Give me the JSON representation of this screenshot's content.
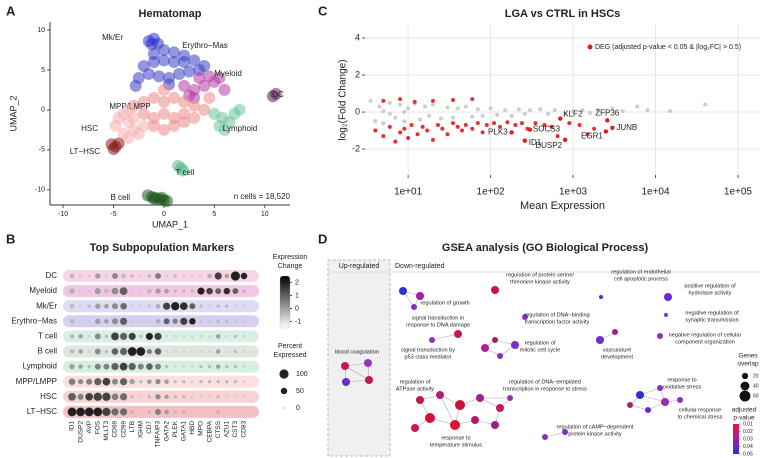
{
  "panels": [
    "A",
    "B",
    "C",
    "D"
  ],
  "chart_data": [
    {
      "type": "scatter",
      "title": "Hematomap",
      "xlabel": "UMAP_1",
      "ylabel": "UMAP_2",
      "annotation": "n cells = 18,520",
      "xlim": [
        -11.3,
        12.5
      ],
      "ylim": [
        -11.9,
        11
      ],
      "xticks": [
        -10,
        -5,
        0,
        5,
        10
      ],
      "yticks": [
        -10,
        -5,
        0,
        5,
        10
      ],
      "grid": false,
      "series": [
        {
          "name": "Mk/Er",
          "color": "#2f2fd0",
          "x": [
            -1.5,
            -1,
            -0.6,
            -1.2
          ],
          "y": [
            8.6,
            8.9,
            8.3,
            8.2
          ]
        },
        {
          "name": "Erythro−Mas",
          "color": "#3a3fc4",
          "x": [
            -2.5,
            -1.5,
            -0.5,
            0.5,
            1.5,
            2.5,
            3.5,
            -2,
            -1,
            0,
            1,
            2,
            3,
            4,
            -1,
            0,
            1,
            2,
            0.5,
            -2.8
          ],
          "y": [
            4,
            4.5,
            4.2,
            4,
            4.5,
            4.8,
            5,
            5.5,
            6,
            6.2,
            6,
            6,
            6.2,
            5.5,
            7,
            7.5,
            7.2,
            6.8,
            3.2,
            3
          ]
        },
        {
          "name": "Myeloid",
          "color": "#b43aa6",
          "x": [
            2,
            3,
            4,
            5,
            3.5,
            4.5,
            5.5,
            2.5,
            6,
            3
          ],
          "y": [
            3,
            2.5,
            3,
            3.5,
            4,
            4.2,
            4,
            1.8,
            2.5,
            1.5
          ]
        },
        {
          "name": "DC",
          "color": "#5c1e5c",
          "x": [
            10.8,
            11.1
          ],
          "y": [
            1.7,
            2
          ]
        },
        {
          "name": "MPP/LMPP",
          "color": "#ef8a8a",
          "x": [
            -3,
            -2,
            -1,
            0,
            1,
            2,
            3,
            4,
            -2,
            -1,
            0,
            1,
            2,
            3,
            -1,
            0,
            1,
            2,
            0,
            4.5
          ],
          "y": [
            0.5,
            1,
            1.5,
            1,
            1.5,
            1,
            0.5,
            0,
            -0.5,
            -1,
            -0.5,
            -1,
            -0.5,
            -1,
            -2,
            -2.5,
            -2,
            -1.5,
            2.5,
            1.5
          ]
        },
        {
          "name": "HSC",
          "color": "#f4b0b0",
          "x": [
            -4.5,
            -4,
            -3.5,
            -3,
            -4,
            -3.5,
            -2.5,
            -3,
            -4.8,
            -3.5,
            -2
          ],
          "y": [
            -1,
            -0.5,
            -1.5,
            -2.5,
            -3,
            -3.5,
            -3,
            -1,
            -2,
            0,
            -2
          ]
        },
        {
          "name": "LT−HSC",
          "color": "#8c1c1c",
          "x": [
            -5.2,
            -4.8,
            -5,
            -4.5
          ],
          "y": [
            -4.3,
            -4.6,
            -4.9,
            -4.2
          ]
        },
        {
          "name": "Lymphoid",
          "color": "#6cc5a0",
          "x": [
            5,
            5.8,
            6.5,
            7,
            7.5,
            6,
            5.5
          ],
          "y": [
            -0.5,
            -1,
            -1.5,
            -0.5,
            0,
            -2.5,
            -2
          ]
        },
        {
          "name": "T cell",
          "color": "#59b890",
          "x": [
            1.4,
            1.7,
            1.9
          ],
          "y": [
            -7,
            -7.3,
            -7.6
          ]
        },
        {
          "name": "B cell",
          "color": "#1e5a1e",
          "x": [
            -1.6,
            -1.2,
            -0.8,
            -0.4,
            0,
            0.3,
            -1,
            -0.2
          ],
          "y": [
            -10.7,
            -10.9,
            -11,
            -11.2,
            -11.3,
            -11.4,
            -11.1,
            -11
          ]
        }
      ]
    },
    {
      "type": "dotplot",
      "title": "Top Subpopulation Markers",
      "rows": [
        "DC",
        "Myeloid",
        "Mk/Er",
        "Erythro−Mas",
        "T cell",
        "B cell",
        "Lymphoid",
        "MPP/LMPP",
        "HSC",
        "LT−HSC"
      ],
      "row_colors": [
        "#f7d6e4",
        "#f3c6e6",
        "#dcdcf7",
        "#d6d0f0",
        "#d8efe3",
        "#dfe6df",
        "#d7efe2",
        "#fbe0e0",
        "#f9d3d3",
        "#f4c0c0"
      ],
      "genes": [
        "ID1",
        "DUSP2",
        "AVP",
        "FOS",
        "MLLT3",
        "CD69",
        "CD99",
        "LTB",
        "IGHM",
        "CD7",
        "TNFAIP3",
        "GATA2",
        "PLEK",
        "GATA1",
        "HBD",
        "MPO",
        "CEBPA",
        "CTSS",
        "AZU1",
        "CST3",
        "CD83"
      ],
      "pct": [
        [
          20,
          10,
          5,
          30,
          10,
          40,
          20,
          10,
          5,
          10,
          40,
          5,
          10,
          5,
          5,
          10,
          20,
          60,
          20,
          100,
          50
        ],
        [
          30,
          10,
          5,
          40,
          20,
          50,
          70,
          10,
          5,
          20,
          30,
          20,
          10,
          10,
          10,
          60,
          50,
          40,
          50,
          40,
          10
        ],
        [
          20,
          5,
          10,
          30,
          20,
          40,
          50,
          5,
          5,
          10,
          20,
          60,
          80,
          70,
          40,
          10,
          5,
          10,
          10,
          5,
          5
        ],
        [
          20,
          5,
          5,
          30,
          20,
          40,
          60,
          5,
          5,
          5,
          20,
          40,
          30,
          60,
          50,
          5,
          5,
          10,
          10,
          10,
          5
        ],
        [
          20,
          20,
          5,
          40,
          10,
          70,
          60,
          60,
          10,
          60,
          60,
          5,
          5,
          5,
          5,
          5,
          5,
          20,
          5,
          10,
          5
        ],
        [
          20,
          20,
          5,
          40,
          10,
          50,
          60,
          90,
          90,
          30,
          50,
          5,
          5,
          5,
          5,
          5,
          5,
          20,
          5,
          10,
          5
        ],
        [
          30,
          20,
          10,
          40,
          40,
          60,
          70,
          60,
          40,
          50,
          40,
          10,
          5,
          5,
          5,
          10,
          10,
          20,
          10,
          10,
          5
        ],
        [
          50,
          30,
          40,
          60,
          70,
          40,
          60,
          30,
          10,
          20,
          30,
          20,
          10,
          10,
          5,
          10,
          10,
          10,
          10,
          10,
          5
        ],
        [
          70,
          40,
          70,
          80,
          80,
          50,
          60,
          10,
          5,
          10,
          30,
          20,
          10,
          10,
          5,
          5,
          5,
          10,
          5,
          5,
          5
        ],
        [
          90,
          90,
          90,
          90,
          80,
          60,
          60,
          10,
          5,
          10,
          40,
          20,
          10,
          10,
          5,
          5,
          5,
          10,
          5,
          5,
          5
        ]
      ],
      "change": [
        [
          -0.5,
          -1,
          -1,
          0,
          -1,
          0.3,
          -0.5,
          -0.5,
          -1,
          -0.5,
          0.5,
          -1,
          -0.5,
          -1,
          -1,
          -1,
          -0.3,
          1.5,
          0,
          2,
          2
        ],
        [
          -0.3,
          -1,
          -1,
          0,
          -0.5,
          0.3,
          1,
          -1,
          -1,
          -0.5,
          0,
          0,
          -0.5,
          -0.5,
          -0.5,
          2,
          1.5,
          1,
          1.8,
          1,
          -0.5
        ],
        [
          -0.5,
          -1,
          -0.5,
          0,
          0,
          0.3,
          0.8,
          -1,
          -1,
          -0.8,
          -0.3,
          1.5,
          2,
          1.8,
          1,
          -0.5,
          -1,
          -0.5,
          -0.5,
          -1,
          -1
        ],
        [
          -0.5,
          -1,
          -1,
          0,
          0,
          0.3,
          1,
          -1,
          -1,
          -1,
          -0.3,
          1,
          0.5,
          1.5,
          2,
          -0.8,
          -1,
          -0.5,
          -0.5,
          -0.8,
          -1
        ],
        [
          -0.5,
          0,
          -1,
          0.3,
          -0.5,
          1.5,
          1,
          1.5,
          -0.5,
          2,
          1.5,
          -1,
          -1,
          -1,
          -1,
          -1,
          -1,
          0,
          -1,
          -0.5,
          -1
        ],
        [
          -0.5,
          0,
          -1,
          0.3,
          -0.5,
          1,
          1,
          2,
          2,
          0.5,
          1,
          -1,
          -1,
          -1,
          -1,
          -1,
          -1,
          0,
          -1,
          -0.5,
          -1
        ],
        [
          0,
          0,
          -0.5,
          0.5,
          0.5,
          1,
          1.5,
          1,
          0.5,
          1,
          0.5,
          -0.5,
          -1,
          -1,
          -1,
          -0.5,
          -0.5,
          0,
          -0.5,
          -0.5,
          -1
        ],
        [
          0.5,
          0.3,
          0.5,
          1,
          1.5,
          0.3,
          1,
          0,
          -0.5,
          0,
          0.3,
          0,
          -0.5,
          -0.5,
          -1,
          -0.5,
          -0.5,
          -0.5,
          -0.5,
          -0.5,
          -1
        ],
        [
          1,
          0.5,
          1.5,
          1.5,
          1.5,
          0.5,
          0.8,
          -0.5,
          -1,
          -0.5,
          0.3,
          0,
          -0.5,
          -0.5,
          -1,
          -1,
          -1,
          -0.5,
          -1,
          -1,
          -1
        ],
        [
          2,
          2,
          2,
          2,
          1.5,
          0.8,
          0.8,
          -0.5,
          -1,
          -0.5,
          0.5,
          0,
          -0.5,
          -0.5,
          -1,
          -1,
          -1,
          -0.5,
          -1,
          -1,
          -1
        ]
      ],
      "color_label": [
        "Expression",
        "Change"
      ],
      "clim": [
        -1.5,
        2.5
      ],
      "color_ticks": [
        2,
        1,
        0,
        -1
      ],
      "size_label": [
        "Percent",
        "Expressed"
      ],
      "size_ticks": [
        100,
        50,
        0
      ]
    },
    {
      "type": "scatter",
      "title": "LGA vs CTRL in HSCs",
      "xlabel": "Mean Expression",
      "ylabel": "log₂(Fold Change)",
      "log_x": true,
      "grid": true,
      "legend": "top-right",
      "xlim": [
        3,
        185000
      ],
      "ylim": [
        -3.4,
        4.7
      ],
      "xticks": [
        {
          "value": 10,
          "label": "1e+01"
        },
        {
          "value": 100,
          "label": "1e+02"
        },
        {
          "value": 1000,
          "label": "1e+03"
        },
        {
          "value": 10000,
          "label": "1e+04"
        },
        {
          "value": 100000,
          "label": "1e+05"
        }
      ],
      "yticks": [
        -2,
        0,
        2,
        4
      ],
      "series": [
        {
          "color": "#c8c8c8",
          "x": [
            3.5,
            4,
            4.5,
            5,
            6,
            7,
            8,
            9,
            10,
            12,
            14,
            16,
            18,
            20,
            25,
            30,
            35,
            40,
            50,
            60,
            70,
            80,
            100,
            120,
            150,
            180,
            220,
            260,
            300,
            400,
            500,
            600,
            800,
            1000,
            1300,
            1600,
            2000,
            3000,
            4000,
            6000,
            8000,
            15000,
            40000,
            5,
            6,
            9
          ],
          "y": [
            0.6,
            -0.5,
            0.3,
            -0.6,
            0.5,
            -0.3,
            0.4,
            -0.5,
            0.2,
            0.45,
            -0.4,
            0.3,
            -0.2,
            0.4,
            -0.35,
            0.25,
            -0.3,
            0.2,
            0.3,
            -0.25,
            0.15,
            -0.2,
            0.2,
            -0.15,
            0.1,
            -0.2,
            0.15,
            -0.1,
            0.1,
            0.15,
            -0.1,
            0.1,
            -0.1,
            0.05,
            0.1,
            -0.05,
            0.1,
            0.2,
            0.05,
            0.3,
            0.1,
            0.05,
            0.4,
            0.05,
            -0.1,
            0
          ]
        },
        {
          "name": "DEG (adjusted p-value < 0.05 & |log₂FC| > 0.5)",
          "color": "#e41a1c",
          "x": [
            4,
            5,
            6,
            7,
            8,
            9,
            10,
            11,
            13,
            15,
            17,
            20,
            23,
            26,
            30,
            35,
            40,
            45,
            50,
            60,
            70,
            80,
            90,
            110,
            130,
            160,
            200,
            240,
            280,
            350,
            450,
            550,
            650,
            900,
            1200,
            1500,
            1800,
            5,
            8,
            12,
            20,
            35,
            60
          ],
          "y": [
            -1,
            -1.3,
            -0.8,
            -1.6,
            -1.1,
            -0.9,
            -1.4,
            -0.7,
            -1.2,
            -0.8,
            -1,
            -1.5,
            -0.7,
            -0.9,
            -1.2,
            -0.6,
            -0.8,
            -1,
            -0.7,
            -0.9,
            -0.6,
            -1.1,
            -0.7,
            -0.6,
            -0.8,
            -0.55,
            -0.7,
            -0.6,
            -0.9,
            -0.6,
            -0.7,
            -0.8,
            -1.3,
            -0.6,
            -0.7,
            -1.2,
            -0.9,
            0.6,
            0.7,
            0.55,
            0.6,
            0.65,
            0.7
          ]
        }
      ],
      "genes": [
        {
          "label": "KLF2",
          "x": 700,
          "y": -0.35
        },
        {
          "label": "ZFP36",
          "x": 2600,
          "y": -0.45
        },
        {
          "label": "JUNB",
          "x": 3000,
          "y": -0.85
        },
        {
          "label": "EGR1",
          "x": 2500,
          "y": -1.05
        },
        {
          "label": "PLK3",
          "x": 180,
          "y": -1.1
        },
        {
          "label": "SOCS3",
          "x": 300,
          "y": -0.95
        },
        {
          "label": "ID1",
          "x": 260,
          "y": -1.55
        },
        {
          "label": "DUSP2",
          "x": 800,
          "y": -1.5
        }
      ]
    }
  ],
  "diagram": {
    "title": "GSEA analysis (GO Biological Process)",
    "up_label": "Up-regulated",
    "down_label": "Down-regulated",
    "terms": [
      {
        "lines": [
          "blood coagulation"
        ]
      },
      {
        "lines": [
          "regulation of growth"
        ]
      },
      {
        "lines": [
          "regulation of protein serine/",
          "threonine kinase activity"
        ]
      },
      {
        "lines": [
          "regulation of endothelial",
          "cell apoptotic process"
        ]
      },
      {
        "lines": [
          "positive regulation of",
          "hydrolase activity"
        ]
      },
      {
        "lines": [
          "regulation of DNA−binding",
          "transcription factor activity"
        ]
      },
      {
        "lines": [
          "signal transduction in",
          "response to DNA damage"
        ]
      },
      {
        "lines": [
          "signal transduction by",
          "p53 class mediator"
        ]
      },
      {
        "lines": [
          "regulation of",
          "mitotic cell cycle"
        ]
      },
      {
        "lines": [
          "negative regulation of",
          "synaptic transmission"
        ]
      },
      {
        "lines": [
          "vasculature",
          "development"
        ]
      },
      {
        "lines": [
          "negative regulation of cellular",
          "component organization"
        ]
      },
      {
        "lines": [
          "regulation of",
          "ATPase activity"
        ]
      },
      {
        "lines": [
          "regulation of DNA−templated",
          "transcription in response to stress"
        ]
      },
      {
        "lines": [
          "response to",
          "oxidative stress"
        ]
      },
      {
        "lines": [
          "cellular response",
          "to chemical stress"
        ]
      },
      {
        "lines": [
          "response to",
          "temperature stimulus"
        ]
      },
      {
        "lines": [
          "regulation of cAMP−dependent",
          "protein kinase activity"
        ]
      }
    ],
    "size_legend": {
      "title": [
        "Genes",
        "overlap"
      ],
      "values": [
        20,
        40,
        60
      ]
    },
    "color_legend": {
      "title": [
        "adjusted",
        "p-value"
      ],
      "values": [
        0.01,
        0.02,
        0.03,
        0.04,
        0.05
      ]
    }
  }
}
